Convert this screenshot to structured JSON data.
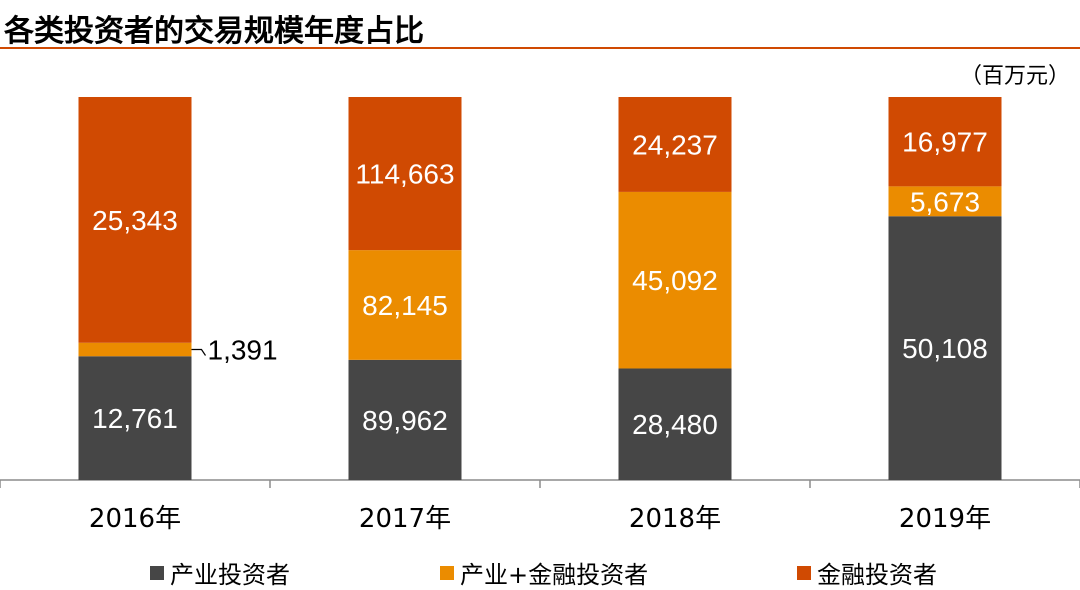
{
  "title": "各类投资者的交易规模年度占比",
  "unit": "（百万元）",
  "chart_data": {
    "type": "bar",
    "stacked": true,
    "normalized": true,
    "categories": [
      "2016年",
      "2017年",
      "2018年",
      "2019年"
    ],
    "series": [
      {
        "name": "产业投资者",
        "color": "#464646",
        "values": [
          12761,
          89962,
          28480,
          50108
        ]
      },
      {
        "name": "产业+金融投资者",
        "color": "#eb8c00",
        "values": [
          1391,
          82145,
          45092,
          5673
        ]
      },
      {
        "name": "金融投资者",
        "color": "#d04a02",
        "values": [
          25343,
          114663,
          24237,
          16977
        ]
      }
    ],
    "value_labels": [
      [
        "12,761",
        "89,962",
        "28,480",
        "50,108"
      ],
      [
        "1,391",
        "82,145",
        "45,092",
        "5,673"
      ],
      [
        "25,343",
        "114,663",
        "24,237",
        "16,977"
      ]
    ],
    "legend_position": "bottom",
    "grid": false
  }
}
